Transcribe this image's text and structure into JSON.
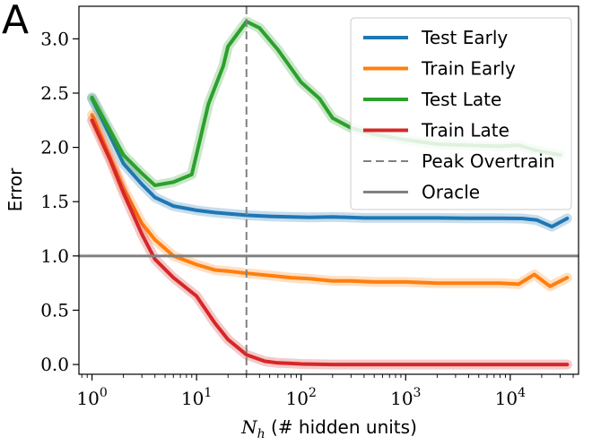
{
  "panel_label": "A",
  "chart_data": {
    "type": "line",
    "xlabel": "N_h (# hidden units)",
    "xlabel_var": "N",
    "xlabel_sub": "h",
    "xlabel_rest": " (# hidden units)",
    "ylabel": "Error",
    "xscale": "log",
    "xlim": [
      0.75,
      45000
    ],
    "ylim": [
      -0.09,
      3.3
    ],
    "xticks": [
      1,
      10,
      100,
      1000,
      10000
    ],
    "xtick_labels": [
      {
        "base": "10",
        "exp": "0"
      },
      {
        "base": "10",
        "exp": "1"
      },
      {
        "base": "10",
        "exp": "2"
      },
      {
        "base": "10",
        "exp": "3"
      },
      {
        "base": "10",
        "exp": "4"
      }
    ],
    "yticks": [
      0.0,
      0.5,
      1.0,
      1.5,
      2.0,
      2.5,
      3.0
    ],
    "ytick_labels": [
      "0.0",
      "0.5",
      "1.0",
      "1.5",
      "2.0",
      "2.5",
      "3.0"
    ],
    "grid": false,
    "legend_position": "top-right",
    "series": [
      {
        "name": "Test Early",
        "color": "#1f77b4",
        "x": [
          1,
          1.5,
          2,
          3,
          4,
          6,
          10,
          15,
          20,
          30,
          50,
          80,
          120,
          200,
          400,
          700,
          1000,
          2000,
          4000,
          8000,
          13000,
          18000,
          25000,
          35000
        ],
        "y": [
          2.45,
          2.1,
          1.85,
          1.66,
          1.54,
          1.46,
          1.42,
          1.4,
          1.39,
          1.375,
          1.365,
          1.36,
          1.355,
          1.36,
          1.35,
          1.35,
          1.35,
          1.35,
          1.348,
          1.347,
          1.345,
          1.33,
          1.27,
          1.345
        ]
      },
      {
        "name": "Train Early",
        "color": "#ff7f0e",
        "x": [
          1,
          1.5,
          2,
          3,
          4,
          6,
          10,
          15,
          20,
          30,
          50,
          80,
          120,
          200,
          300,
          500,
          1000,
          2000,
          4000,
          8000,
          12000,
          17000,
          24000,
          35000
        ],
        "y": [
          2.3,
          1.9,
          1.62,
          1.3,
          1.15,
          1.0,
          0.92,
          0.87,
          0.86,
          0.84,
          0.82,
          0.8,
          0.79,
          0.77,
          0.77,
          0.76,
          0.76,
          0.75,
          0.75,
          0.75,
          0.74,
          0.83,
          0.72,
          0.8
        ]
      },
      {
        "name": "Test Late",
        "color": "#2ca02c",
        "x": [
          1,
          1.5,
          2,
          3,
          4,
          6,
          9,
          13,
          18,
          20,
          30,
          40,
          60,
          100,
          150,
          200,
          300,
          500,
          1000,
          2000,
          4000,
          8000,
          12000,
          18000,
          30000
        ],
        "y": [
          2.46,
          2.15,
          1.93,
          1.76,
          1.65,
          1.68,
          1.75,
          2.4,
          2.75,
          2.93,
          3.16,
          3.1,
          2.9,
          2.6,
          2.45,
          2.27,
          2.18,
          2.12,
          2.07,
          2.03,
          2.02,
          2.01,
          2.02,
          1.97,
          1.93
        ]
      },
      {
        "name": "Train Late",
        "color": "#d62728",
        "x": [
          1,
          1.5,
          2,
          3,
          4,
          6,
          10,
          15,
          20,
          30,
          45,
          60,
          80,
          100,
          200,
          500,
          1000,
          3000,
          10000,
          35000
        ],
        "y": [
          2.25,
          1.88,
          1.58,
          1.2,
          0.97,
          0.8,
          0.63,
          0.38,
          0.23,
          0.09,
          0.03,
          0.015,
          0.01,
          0.005,
          0.0,
          0.0,
          0.0,
          0.0,
          0.0,
          0.0
        ]
      }
    ],
    "reference_lines": [
      {
        "name": "Peak Overtrain",
        "orientation": "vertical",
        "value": 30,
        "style": "dashed",
        "color": "#808080"
      },
      {
        "name": "Oracle",
        "orientation": "horizontal",
        "value": 1.0,
        "style": "solid",
        "color": "#808080"
      }
    ]
  }
}
